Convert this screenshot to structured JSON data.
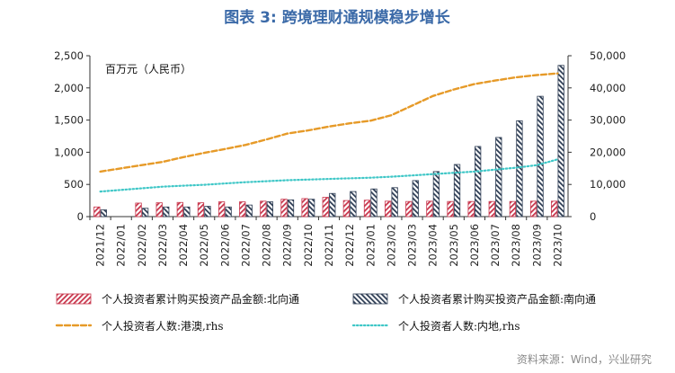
{
  "title": "图表 3:  跨境理财通规模稳步增长",
  "source": "资料来源：Wind，兴业研究",
  "colors": {
    "title": "#3b6aa8",
    "north_bar": "#c8374d",
    "south_bar": "#2f3e55",
    "hk_line": "#e69a28",
    "mainland_line": "#3fc7c7"
  },
  "chart_data": {
    "type": "bar",
    "title": "",
    "unit_label": "百万元（人民币）",
    "categories": [
      "2021/12",
      "2022/01",
      "2022/02",
      "2022/03",
      "2022/04",
      "2022/05",
      "2022/06",
      "2022/07",
      "2022/08",
      "2022/09",
      "2022/10",
      "2022/11",
      "2022/12",
      "2023/01",
      "2023/02",
      "2023/03",
      "2023/04",
      "2023/05",
      "2023/06",
      "2023/07",
      "2023/08",
      "2023/09",
      "2023/10"
    ],
    "y_left": {
      "ylim": [
        0,
        2500
      ],
      "ticks": [
        "0",
        "500",
        "1,000",
        "1,500",
        "2,000",
        "2,500"
      ]
    },
    "y_right": {
      "ylim": [
        0,
        50000
      ],
      "ticks": [
        "0",
        "10,000",
        "20,000",
        "30,000",
        "40,000",
        "50,000"
      ]
    },
    "series": [
      {
        "name": "个人投资者累计购买投资产品金额:北向通",
        "type": "bar",
        "axis": "left",
        "values": [
          150,
          null,
          210,
          215,
          220,
          215,
          230,
          230,
          240,
          270,
          280,
          300,
          250,
          255,
          240,
          235,
          240,
          235,
          235,
          235,
          235,
          240,
          240
        ]
      },
      {
        "name": "个人投资者累计购买投资产品金额:南向通",
        "type": "bar",
        "axis": "left",
        "values": [
          105,
          null,
          130,
          150,
          150,
          160,
          150,
          180,
          230,
          260,
          270,
          360,
          390,
          430,
          450,
          560,
          700,
          810,
          1090,
          1230,
          1490,
          1870,
          2350
        ]
      },
      {
        "name": "个人投资者人数:港澳,rhs",
        "type": "line",
        "axis": "right",
        "style": "dashed",
        "values": [
          14000,
          15000,
          16000,
          17000,
          18500,
          19800,
          21000,
          22300,
          24000,
          25800,
          26800,
          28000,
          29000,
          29800,
          31500,
          34500,
          37500,
          39500,
          41200,
          42300,
          43300,
          44000,
          44500
        ]
      },
      {
        "name": "个人投资者人数:内地,rhs",
        "type": "line",
        "axis": "right",
        "style": "dotted",
        "values": [
          7800,
          8300,
          8800,
          9300,
          9600,
          9900,
          10300,
          10700,
          11000,
          11300,
          11500,
          11700,
          11900,
          12100,
          12400,
          12800,
          13200,
          13600,
          14000,
          14600,
          15200,
          16000,
          17800
        ]
      }
    ],
    "grid": false,
    "legend_position": "bottom"
  }
}
